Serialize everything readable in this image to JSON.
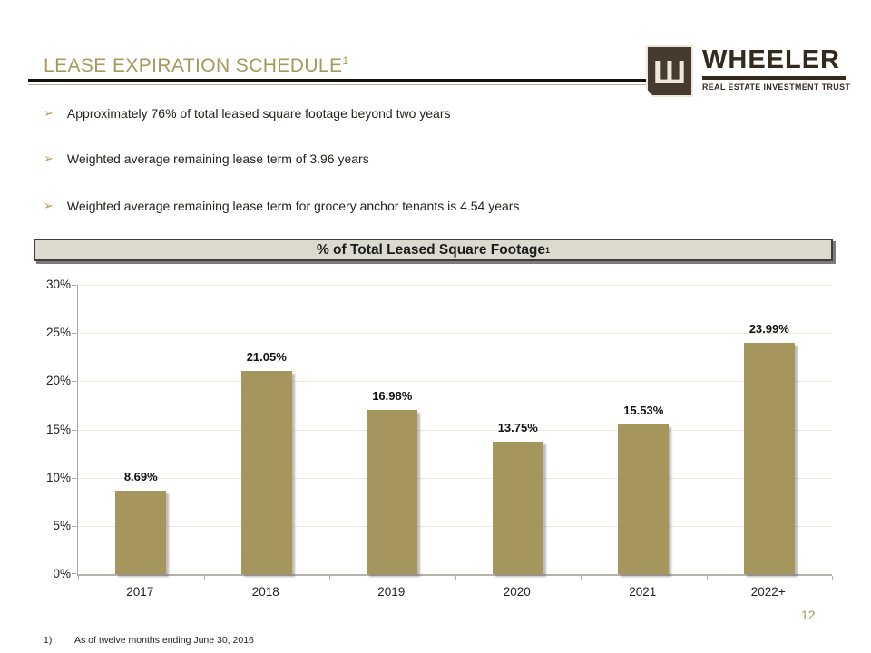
{
  "slide": {
    "page_number": "12"
  },
  "header": {
    "title": "LEASE EXPIRATION SCHEDULE",
    "title_superscript": "1"
  },
  "logo": {
    "monogram_glyph": "Ш",
    "name": "WHEELER",
    "tagline": "REAL ESTATE INVESTMENT TRUST"
  },
  "bullets": {
    "glyph": "➢",
    "items": [
      "Approximately 76% of total leased square footage beyond two years",
      "Weighted average remaining lease term of 3.96 years",
      "Weighted average remaining lease term for grocery anchor tenants is 4.54 years"
    ]
  },
  "chart_data": {
    "type": "bar",
    "title": "% of Total Leased Square Footage",
    "title_superscript": "1",
    "categories": [
      "2017",
      "2018",
      "2019",
      "2020",
      "2021",
      "2022+"
    ],
    "values": [
      8.69,
      21.05,
      16.98,
      13.75,
      15.53,
      23.99
    ],
    "value_labels": [
      "8.69%",
      "21.05%",
      "16.98%",
      "13.75%",
      "15.53%",
      "23.99%"
    ],
    "ylim": [
      0,
      30
    ],
    "y_tick_step": 5,
    "y_tick_labels": [
      "0%",
      "5%",
      "10%",
      "15%",
      "20%",
      "25%",
      "30%"
    ],
    "grid": true,
    "legend": false,
    "bar_color": "#a4965c",
    "xlabel": "",
    "ylabel": ""
  },
  "footnote": {
    "marker": "1)",
    "text": "As of twelve months ending June 30, 2016"
  },
  "colors": {
    "accent_gold": "#a5995d",
    "bar": "#a4965c",
    "logo_brown": "#342a1d",
    "text": "#1f1f1f"
  }
}
